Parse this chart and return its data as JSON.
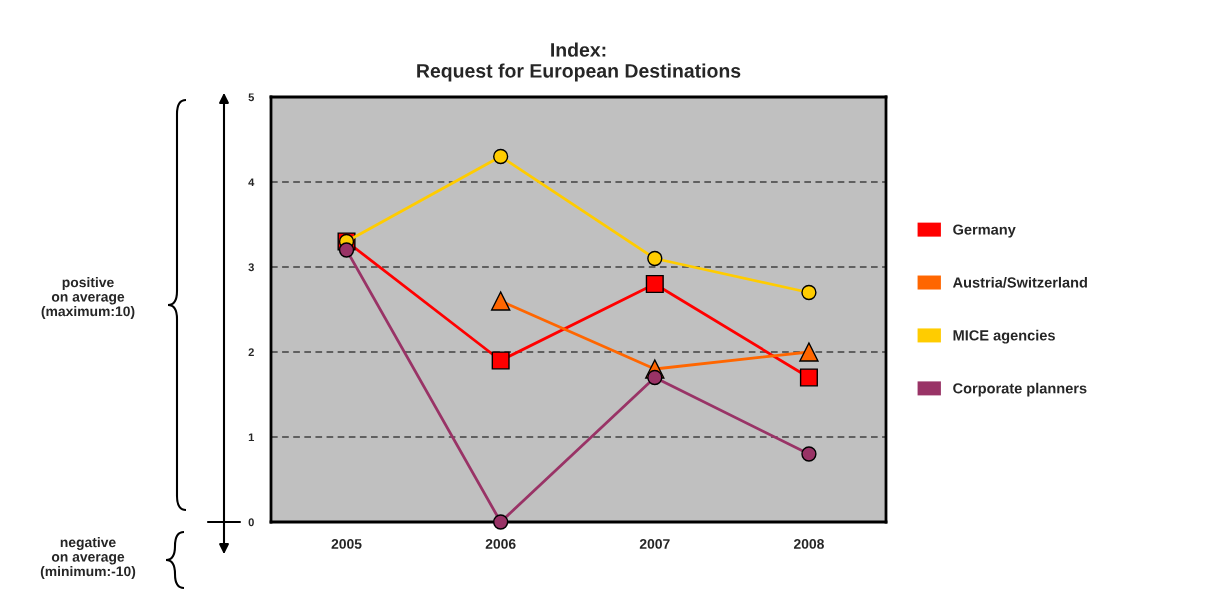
{
  "chart_data": {
    "type": "line",
    "title": "Index:\nRequest for European Destinations",
    "categories": [
      "2005",
      "2006",
      "2007",
      "2008"
    ],
    "series": [
      {
        "name": "Germany",
        "color": "#ff0000",
        "marker": "square",
        "values": [
          3.3,
          1.9,
          2.8,
          1.7
        ]
      },
      {
        "name": "Austria/Switzerland",
        "color": "#ff6600",
        "marker": "triangle",
        "values": [
          null,
          2.6,
          1.8,
          2.0
        ]
      },
      {
        "name": "MICE agencies",
        "color": "#ffcc00",
        "marker": "circle",
        "values": [
          3.3,
          4.3,
          3.1,
          2.7
        ]
      },
      {
        "name": "Corporate planners",
        "color": "#993366",
        "marker": "circle",
        "values": [
          3.2,
          0,
          1.7,
          0.8
        ]
      }
    ],
    "ylim": [
      0,
      5
    ],
    "yticks": [
      0,
      1,
      2,
      3,
      4,
      5
    ],
    "grid": "y",
    "legend": "right",
    "line_style": "solid",
    "annotations": [
      "positive\non average\n(maximum:10)",
      "negative\non average\n(minimum:-10)"
    ]
  }
}
